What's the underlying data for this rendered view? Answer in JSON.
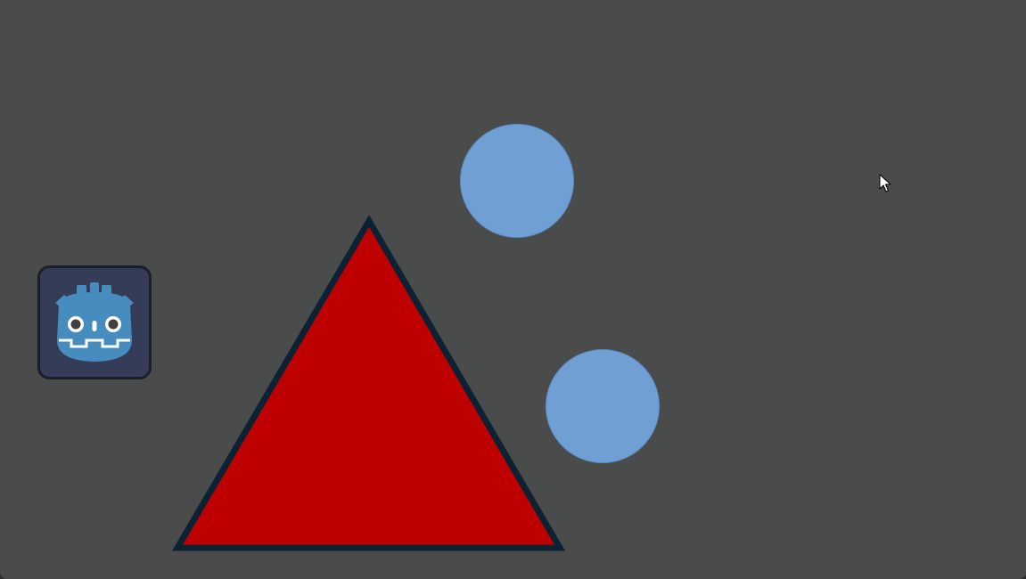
{
  "scene": {
    "background_color": "#4a4b4b",
    "icon": {
      "name": "godot-icon",
      "frame_fill": "#353c57",
      "frame_stroke": "#1c1f2b",
      "logo_color": "#478cbf"
    },
    "triangle": {
      "fill": "#bd0000",
      "stroke": "#0c2233"
    },
    "circles": [
      {
        "fill": "#709fd3",
        "stroke": "#5c8fc8"
      },
      {
        "fill": "#709fd3",
        "stroke": "#5c8fc8"
      }
    ]
  },
  "cursor": {
    "icon": "arrow-cursor-icon"
  }
}
